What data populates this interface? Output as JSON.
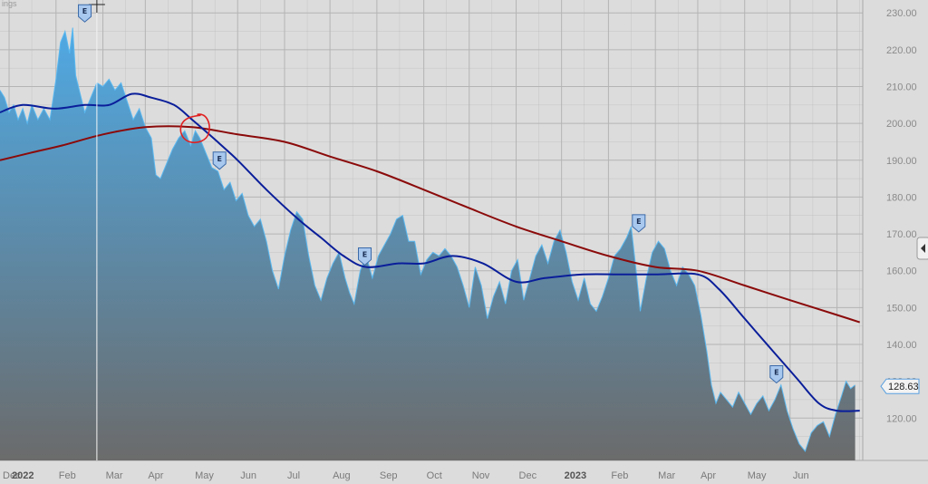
{
  "header": {
    "corner_label": "ings"
  },
  "colors": {
    "background": "#dcdcdc",
    "grid": "#b4b4b4",
    "area_top": "#4fa9e4",
    "area_bottom": "#6b6b6b",
    "area_line": "#5ab8f0",
    "ma_short": "#0a1e9a",
    "ma_long": "#8b0a0a",
    "annotation": "#e02020",
    "marker_fill": "#a9c8ee",
    "marker_stroke": "#3b6aa8"
  },
  "chart_data": {
    "type": "area",
    "x_axis": {
      "labels": [
        "Dec",
        "2022",
        "Feb",
        "Mar",
        "Apr",
        "May",
        "Jun",
        "Jul",
        "Aug",
        "Sep",
        "Oct",
        "Nov",
        "Dec",
        "2023",
        "Feb",
        "Mar",
        "Apr",
        "May",
        "Jun"
      ],
      "year_labels": [
        "2022",
        "2023"
      ],
      "range": [
        "2021-11-25",
        "2023-06-18"
      ]
    },
    "y_axis": {
      "ticks": [
        120,
        130,
        140,
        150,
        160,
        170,
        180,
        190,
        200,
        210,
        220,
        230
      ],
      "tick_labels": [
        "120.00",
        "130.00",
        "140.00",
        "150.00",
        "160.00",
        "170.00",
        "180.00",
        "190.00",
        "200.00",
        "210.00",
        "220.00",
        "230.00"
      ],
      "range": [
        108.5,
        233.5
      ],
      "side": "right"
    },
    "grid": true,
    "series": [
      {
        "kind": "price-area",
        "points": [
          [
            "2021-11-25",
            209
          ],
          [
            "2021-11-28",
            207
          ],
          [
            "2021-12-01",
            203
          ],
          [
            "2021-12-04",
            205
          ],
          [
            "2021-12-07",
            201
          ],
          [
            "2021-12-10",
            204
          ],
          [
            "2021-12-13",
            200
          ],
          [
            "2021-12-16",
            205
          ],
          [
            "2021-12-20",
            201
          ],
          [
            "2021-12-24",
            204
          ],
          [
            "2021-12-28",
            201
          ],
          [
            "2022-01-01",
            212
          ],
          [
            "2022-01-04",
            222
          ],
          [
            "2022-01-07",
            225
          ],
          [
            "2022-01-10",
            219
          ],
          [
            "2022-01-12",
            226
          ],
          [
            "2022-01-14",
            213
          ],
          [
            "2022-01-17",
            208
          ],
          [
            "2022-01-20",
            203
          ],
          [
            "2022-01-24",
            207
          ],
          [
            "2022-01-28",
            211
          ],
          [
            "2022-02-01",
            210
          ],
          [
            "2022-02-05",
            212
          ],
          [
            "2022-02-09",
            209
          ],
          [
            "2022-02-13",
            211
          ],
          [
            "2022-02-17",
            206
          ],
          [
            "2022-02-21",
            201
          ],
          [
            "2022-02-25",
            204
          ],
          [
            "2022-03-01",
            199
          ],
          [
            "2022-03-05",
            196
          ],
          [
            "2022-03-08",
            186
          ],
          [
            "2022-03-11",
            185
          ],
          [
            "2022-03-15",
            189
          ],
          [
            "2022-03-19",
            193
          ],
          [
            "2022-03-23",
            196
          ],
          [
            "2022-03-27",
            198
          ],
          [
            "2022-03-31",
            194
          ],
          [
            "2022-04-03",
            198
          ],
          [
            "2022-04-06",
            196
          ],
          [
            "2022-04-10",
            192
          ],
          [
            "2022-04-14",
            188
          ],
          [
            "2022-04-18",
            187
          ],
          [
            "2022-04-22",
            182
          ],
          [
            "2022-04-26",
            184
          ],
          [
            "2022-04-30",
            179
          ],
          [
            "2022-05-04",
            181
          ],
          [
            "2022-05-08",
            175
          ],
          [
            "2022-05-12",
            172
          ],
          [
            "2022-05-16",
            174
          ],
          [
            "2022-05-20",
            168
          ],
          [
            "2022-05-24",
            160
          ],
          [
            "2022-05-28",
            155
          ],
          [
            "2022-06-01",
            164
          ],
          [
            "2022-06-05",
            171
          ],
          [
            "2022-06-09",
            176
          ],
          [
            "2022-06-13",
            174
          ],
          [
            "2022-06-17",
            164
          ],
          [
            "2022-06-21",
            156
          ],
          [
            "2022-06-25",
            152
          ],
          [
            "2022-06-29",
            158
          ],
          [
            "2022-07-03",
            162
          ],
          [
            "2022-07-07",
            165
          ],
          [
            "2022-07-11",
            158
          ],
          [
            "2022-07-14",
            154
          ],
          [
            "2022-07-17",
            151
          ],
          [
            "2022-07-21",
            160
          ],
          [
            "2022-07-25",
            164
          ],
          [
            "2022-07-29",
            158
          ],
          [
            "2022-08-02",
            164
          ],
          [
            "2022-08-06",
            167
          ],
          [
            "2022-08-10",
            170
          ],
          [
            "2022-08-14",
            174
          ],
          [
            "2022-08-18",
            175
          ],
          [
            "2022-08-22",
            168
          ],
          [
            "2022-08-26",
            168
          ],
          [
            "2022-08-30",
            159
          ],
          [
            "2022-09-03",
            163
          ],
          [
            "2022-09-07",
            165
          ],
          [
            "2022-09-11",
            164
          ],
          [
            "2022-09-15",
            166
          ],
          [
            "2022-09-19",
            164
          ],
          [
            "2022-09-23",
            161
          ],
          [
            "2022-09-27",
            156
          ],
          [
            "2022-10-01",
            150
          ],
          [
            "2022-10-05",
            161
          ],
          [
            "2022-10-09",
            156
          ],
          [
            "2022-10-13",
            147
          ],
          [
            "2022-10-17",
            153
          ],
          [
            "2022-10-21",
            157
          ],
          [
            "2022-10-25",
            151
          ],
          [
            "2022-10-29",
            160
          ],
          [
            "2022-11-02",
            163
          ],
          [
            "2022-11-06",
            152
          ],
          [
            "2022-11-10",
            158
          ],
          [
            "2022-11-14",
            164
          ],
          [
            "2022-11-18",
            167
          ],
          [
            "2022-11-22",
            162
          ],
          [
            "2022-11-26",
            168
          ],
          [
            "2022-11-30",
            171
          ],
          [
            "2022-12-04",
            165
          ],
          [
            "2022-12-08",
            157
          ],
          [
            "2022-12-12",
            152
          ],
          [
            "2022-12-16",
            158
          ],
          [
            "2022-12-20",
            151
          ],
          [
            "2022-12-24",
            149
          ],
          [
            "2022-12-28",
            153
          ],
          [
            "2023-01-01",
            158
          ],
          [
            "2023-01-05",
            164
          ],
          [
            "2023-01-09",
            166
          ],
          [
            "2023-01-13",
            169
          ],
          [
            "2023-01-16",
            172
          ],
          [
            "2023-01-19",
            161
          ],
          [
            "2023-01-22",
            149
          ],
          [
            "2023-01-26",
            158
          ],
          [
            "2023-01-30",
            165
          ],
          [
            "2023-02-03",
            168
          ],
          [
            "2023-02-07",
            166
          ],
          [
            "2023-02-11",
            160
          ],
          [
            "2023-02-15",
            156
          ],
          [
            "2023-02-19",
            161
          ],
          [
            "2023-02-23",
            159
          ],
          [
            "2023-02-27",
            156
          ],
          [
            "2023-03-03",
            148
          ],
          [
            "2023-03-07",
            138
          ],
          [
            "2023-03-10",
            129
          ],
          [
            "2023-03-13",
            124
          ],
          [
            "2023-03-16",
            127
          ],
          [
            "2023-03-20",
            125
          ],
          [
            "2023-03-24",
            123
          ],
          [
            "2023-03-28",
            127
          ],
          [
            "2023-04-01",
            124
          ],
          [
            "2023-04-05",
            121
          ],
          [
            "2023-04-09",
            124
          ],
          [
            "2023-04-13",
            126
          ],
          [
            "2023-04-17",
            122
          ],
          [
            "2023-04-21",
            125
          ],
          [
            "2023-04-25",
            129
          ],
          [
            "2023-04-29",
            122
          ],
          [
            "2023-05-03",
            117
          ],
          [
            "2023-05-07",
            113
          ],
          [
            "2023-05-11",
            111
          ],
          [
            "2023-05-15",
            116
          ],
          [
            "2023-05-19",
            118
          ],
          [
            "2023-05-23",
            119
          ],
          [
            "2023-05-27",
            115
          ],
          [
            "2023-05-31",
            121
          ],
          [
            "2023-06-04",
            126
          ],
          [
            "2023-06-07",
            130
          ],
          [
            "2023-06-10",
            128
          ],
          [
            "2023-06-13",
            129
          ]
        ]
      },
      {
        "kind": "moving-average-short",
        "points": [
          [
            "2021-11-25",
            203
          ],
          [
            "2021-12-10",
            205
          ],
          [
            "2021-12-31",
            204
          ],
          [
            "2022-01-20",
            205
          ],
          [
            "2022-02-05",
            205
          ],
          [
            "2022-02-20",
            208
          ],
          [
            "2022-03-05",
            207
          ],
          [
            "2022-03-20",
            205
          ],
          [
            "2022-04-01",
            201
          ],
          [
            "2022-04-15",
            196
          ],
          [
            "2022-05-01",
            190
          ],
          [
            "2022-05-20",
            182
          ],
          [
            "2022-06-10",
            174
          ],
          [
            "2022-06-25",
            169
          ],
          [
            "2022-07-10",
            164
          ],
          [
            "2022-07-25",
            161
          ],
          [
            "2022-08-15",
            162
          ],
          [
            "2022-09-01",
            162
          ],
          [
            "2022-09-20",
            164
          ],
          [
            "2022-10-10",
            162
          ],
          [
            "2022-11-01",
            157
          ],
          [
            "2022-11-20",
            158
          ],
          [
            "2022-12-15",
            159
          ],
          [
            "2023-01-10",
            159
          ],
          [
            "2023-02-01",
            159
          ],
          [
            "2023-03-01",
            159
          ],
          [
            "2023-03-15",
            155
          ],
          [
            "2023-04-01",
            147
          ],
          [
            "2023-04-20",
            138
          ],
          [
            "2023-05-05",
            131
          ],
          [
            "2023-05-20",
            124
          ],
          [
            "2023-06-01",
            122
          ],
          [
            "2023-06-16",
            122
          ]
        ]
      },
      {
        "kind": "moving-average-long",
        "points": [
          [
            "2021-11-25",
            190
          ],
          [
            "2021-12-15",
            192
          ],
          [
            "2022-01-05",
            194
          ],
          [
            "2022-02-01",
            197
          ],
          [
            "2022-03-01",
            199
          ],
          [
            "2022-04-01",
            199
          ],
          [
            "2022-05-01",
            197
          ],
          [
            "2022-06-01",
            195
          ],
          [
            "2022-07-01",
            191
          ],
          [
            "2022-08-01",
            187
          ],
          [
            "2022-09-01",
            182
          ],
          [
            "2022-10-01",
            177
          ],
          [
            "2022-11-01",
            172
          ],
          [
            "2022-12-01",
            168
          ],
          [
            "2023-01-01",
            164
          ],
          [
            "2023-02-01",
            161
          ],
          [
            "2023-03-01",
            160
          ],
          [
            "2023-04-01",
            156
          ],
          [
            "2023-05-01",
            152
          ],
          [
            "2023-06-01",
            148
          ],
          [
            "2023-06-16",
            146
          ]
        ]
      }
    ],
    "earnings_markers": [
      {
        "label": "E",
        "date": "2022-01-20",
        "price": 230
      },
      {
        "label": "E",
        "date": "2022-04-19",
        "price": 190
      },
      {
        "label": "E",
        "date": "2022-07-24",
        "price": 164
      },
      {
        "label": "E",
        "date": "2023-01-21",
        "price": 173
      },
      {
        "label": "E",
        "date": "2023-04-22",
        "price": 132
      }
    ],
    "last_price": {
      "value": 128.63,
      "label": "128.63"
    },
    "annotation": {
      "shape": "hand-drawn-circle",
      "date": "2022-04-03",
      "price": 198.5
    },
    "crosshair": {
      "date": "2022-01-28"
    }
  }
}
